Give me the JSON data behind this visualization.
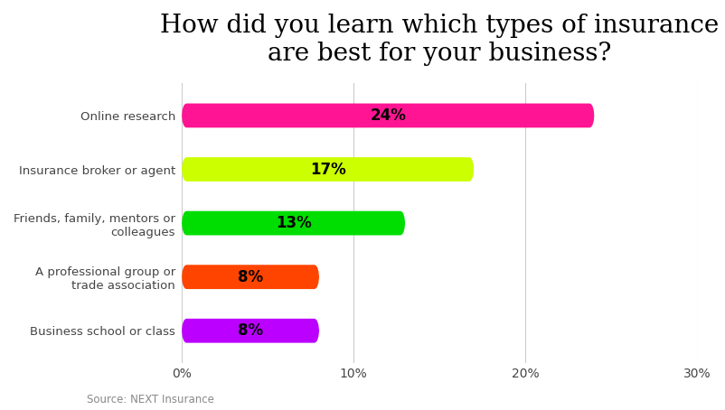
{
  "title": "How did you learn which types of insurance\nare best for your business?",
  "categories": [
    "Business school or class",
    "A professional group or\ntrade association",
    "Friends, family, mentors or\ncolleagues",
    "Insurance broker or agent",
    "Online research"
  ],
  "values": [
    8,
    8,
    13,
    17,
    24
  ],
  "bar_colors": [
    "#BB00FF",
    "#FF4400",
    "#00DD00",
    "#CCFF00",
    "#FF1493"
  ],
  "label_texts": [
    "8%",
    "8%",
    "13%",
    "17%",
    "24%"
  ],
  "xlim": [
    0,
    30
  ],
  "xticks": [
    0,
    10,
    20,
    30
  ],
  "xticklabels": [
    "0%",
    "10%",
    "20%",
    "30%"
  ],
  "source_text": "Source: NEXT Insurance",
  "background_color": "#FFFFFF",
  "bar_height": 0.45,
  "title_fontsize": 20,
  "label_fontsize": 12,
  "tick_fontsize": 10,
  "ytick_fontsize": 9.5,
  "source_fontsize": 8.5
}
